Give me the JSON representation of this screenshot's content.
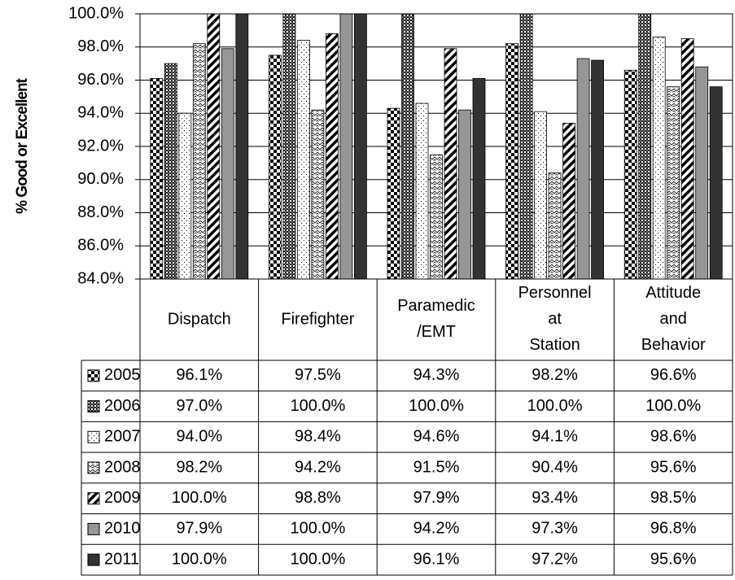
{
  "chart_data": {
    "type": "bar",
    "y_label": "% Good or Excellent",
    "categories": [
      "Dispatch",
      "Firefighter",
      "Paramedic /EMT",
      "Personnel at Station",
      "Attitude and Behavior"
    ],
    "ylim": [
      84,
      100
    ],
    "yticks": [
      {
        "value": 84,
        "label": "84.0%"
      },
      {
        "value": 86,
        "label": "86.0%"
      },
      {
        "value": 88,
        "label": "88.0%"
      },
      {
        "value": 90,
        "label": "90.0%"
      },
      {
        "value": 92,
        "label": "92.0%"
      },
      {
        "value": 94,
        "label": "94.0%"
      },
      {
        "value": 96,
        "label": "96.0%"
      },
      {
        "value": 98,
        "label": "98.0%"
      },
      {
        "value": 100,
        "label": "100.0%"
      }
    ],
    "grid": true,
    "series": [
      {
        "name": "2005",
        "color": "#000000",
        "pattern": "checker",
        "values": [
          96.1,
          97.5,
          94.3,
          98.2,
          96.6
        ],
        "value_labels": [
          "96.1%",
          "97.5%",
          "94.3%",
          "98.2%",
          "96.6%"
        ]
      },
      {
        "name": "2006",
        "color": "#333333",
        "pattern": "dense",
        "values": [
          97.0,
          100.0,
          100.0,
          100.0,
          100.0
        ],
        "value_labels": [
          "97.0%",
          "100.0%",
          "100.0%",
          "100.0%",
          "100.0%"
        ]
      },
      {
        "name": "2007",
        "color": "#ffffff",
        "pattern": "dots",
        "values": [
          94.0,
          98.4,
          94.6,
          94.1,
          98.6
        ],
        "value_labels": [
          "94.0%",
          "98.4%",
          "94.6%",
          "94.1%",
          "98.6%"
        ]
      },
      {
        "name": "2008",
        "color": "#ffffff",
        "pattern": "wave",
        "values": [
          98.2,
          94.2,
          91.5,
          90.4,
          95.6
        ],
        "value_labels": [
          "98.2%",
          "94.2%",
          "91.5%",
          "90.4%",
          "95.6%"
        ]
      },
      {
        "name": "2009",
        "color": "#ffffff",
        "pattern": "stripe",
        "values": [
          100.0,
          98.8,
          97.9,
          93.4,
          98.5
        ],
        "value_labels": [
          "100.0%",
          "98.8%",
          "97.9%",
          "93.4%",
          "98.5%"
        ]
      },
      {
        "name": "2010",
        "color": "#969696",
        "pattern": "solid",
        "values": [
          97.9,
          100.0,
          94.2,
          97.3,
          96.8
        ],
        "value_labels": [
          "97.9%",
          "100.0%",
          "94.2%",
          "97.3%",
          "96.8%"
        ]
      },
      {
        "name": "2011",
        "color": "#333333",
        "pattern": "solid",
        "values": [
          100.0,
          100.0,
          96.1,
          97.2,
          95.6
        ],
        "value_labels": [
          "100.0%",
          "100.0%",
          "96.1%",
          "97.2%",
          "95.6%"
        ]
      }
    ]
  }
}
